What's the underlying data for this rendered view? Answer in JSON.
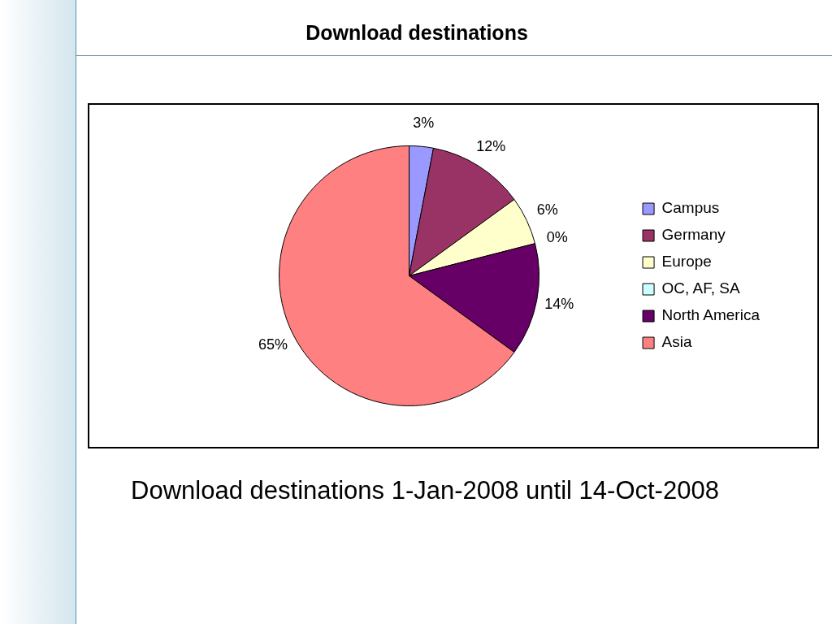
{
  "chart_data": {
    "type": "pie",
    "title": "Download destinations",
    "categories": [
      "Campus",
      "Germany",
      "Europe",
      "OC, AF, SA",
      "North America",
      "Asia"
    ],
    "values": [
      3,
      12,
      6,
      0,
      14,
      65
    ],
    "value_labels": [
      "3%",
      "12%",
      "6%",
      "0%",
      "14%",
      "65%"
    ],
    "colors": [
      "#9999ff",
      "#993366",
      "#ffffcc",
      "#ccffff",
      "#660066",
      "#ff8080"
    ],
    "legend": "right",
    "annotations": [
      "Download destinations 1-Jan-2008 until 14-Oct-2008"
    ]
  }
}
